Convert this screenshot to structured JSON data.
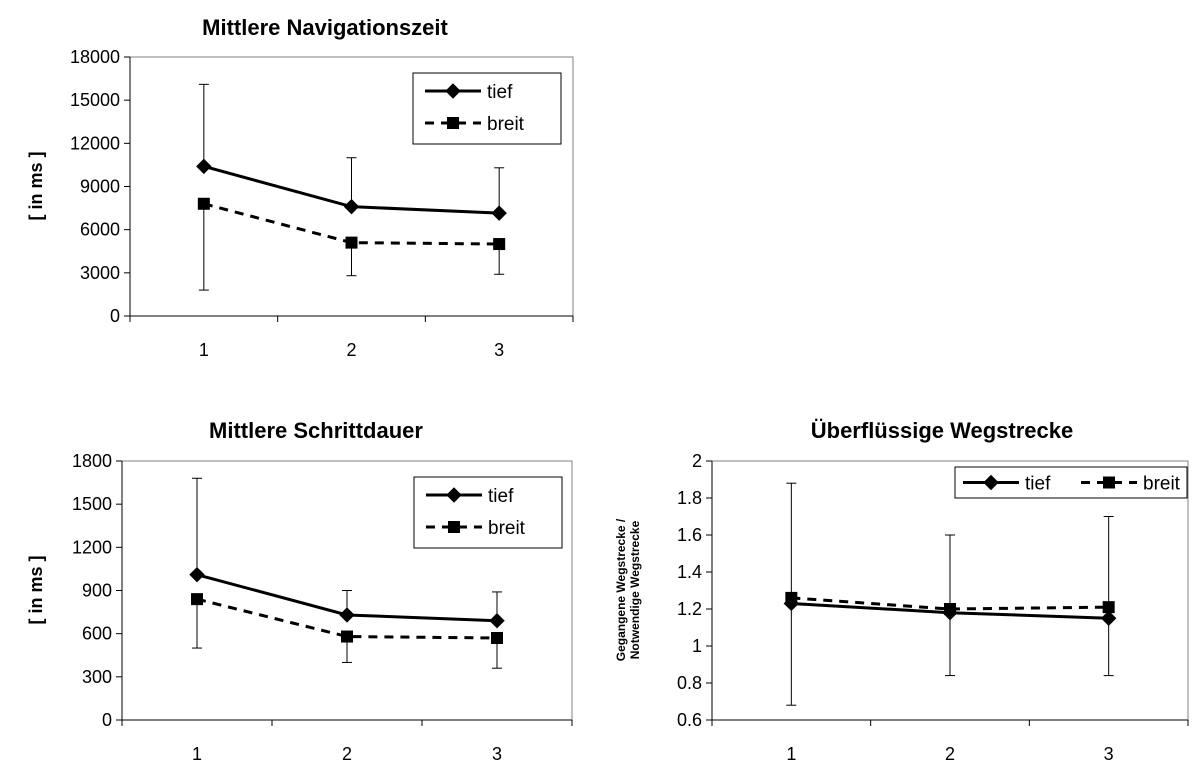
{
  "colors": {
    "series": "#000000",
    "background": "#ffffff"
  },
  "chart_data": [
    {
      "type": "line",
      "title": "Mittlere Navigationszeit",
      "ylabel_lines": [
        "[ in ms ]"
      ],
      "xlabel": "",
      "categories": [
        "1",
        "2",
        "3"
      ],
      "ylim": [
        0,
        18000
      ],
      "yticks": [
        0,
        3000,
        6000,
        9000,
        12000,
        15000,
        18000
      ],
      "ytick_labels": [
        "0",
        "3000",
        "6000",
        "9000",
        "12000",
        "15000",
        "18000"
      ],
      "grid": false,
      "legend_position": "top-right",
      "legend_layout": "vertical",
      "series": [
        {
          "name": "tief",
          "style": "solid",
          "marker": "diamond",
          "values": [
            10400,
            7600,
            7150
          ],
          "error_upper": [
            16100,
            11000,
            10300
          ],
          "error_lower": [
            null,
            null,
            null
          ]
        },
        {
          "name": "breit",
          "style": "dashed",
          "marker": "square",
          "values": [
            7800,
            5100,
            5000
          ],
          "error_upper": [
            null,
            null,
            null
          ],
          "error_lower": [
            1800,
            2800,
            2900
          ]
        }
      ]
    },
    {
      "type": "line",
      "title": "Mittlere Schrittdauer",
      "ylabel_lines": [
        "[ in ms ]"
      ],
      "xlabel": "",
      "categories": [
        "1",
        "2",
        "3"
      ],
      "ylim": [
        0,
        1800
      ],
      "yticks": [
        0,
        300,
        600,
        900,
        1200,
        1500,
        1800
      ],
      "ytick_labels": [
        "0",
        "300",
        "600",
        "900",
        "1200",
        "1500",
        "1800"
      ],
      "grid": false,
      "legend_position": "top-right",
      "legend_layout": "vertical",
      "series": [
        {
          "name": "tief",
          "style": "solid",
          "marker": "diamond",
          "values": [
            1010,
            730,
            690
          ],
          "error_upper": [
            1680,
            900,
            890
          ],
          "error_lower": [
            null,
            null,
            null
          ]
        },
        {
          "name": "breit",
          "style": "dashed",
          "marker": "square",
          "values": [
            840,
            580,
            570
          ],
          "error_upper": [
            null,
            null,
            null
          ],
          "error_lower": [
            500,
            400,
            360
          ]
        }
      ]
    },
    {
      "type": "line",
      "title": "Überflüssige Wegstrecke",
      "ylabel_lines": [
        "Gegangene Wegstrecke /",
        "Notwendige Wegstrecke"
      ],
      "xlabel": "",
      "categories": [
        "1",
        "2",
        "3"
      ],
      "ylim": [
        0.6,
        2
      ],
      "yticks": [
        0.6,
        0.8,
        1.0,
        1.2,
        1.4,
        1.6,
        1.8,
        2.0
      ],
      "ytick_labels": [
        "0.6",
        "0.8",
        "1",
        "1.2",
        "1.4",
        "1.6",
        "1.8",
        "2"
      ],
      "grid": false,
      "legend_position": "top-right",
      "legend_layout": "horizontal",
      "series": [
        {
          "name": "tief",
          "style": "solid",
          "marker": "diamond",
          "values": [
            1.23,
            1.18,
            1.15
          ],
          "error_upper": [
            1.88,
            1.6,
            1.7
          ],
          "error_lower": [
            0.68,
            0.84,
            0.84
          ]
        },
        {
          "name": "breit",
          "style": "dashed",
          "marker": "square",
          "values": [
            1.26,
            1.2,
            1.21
          ],
          "error_upper": [
            null,
            null,
            null
          ],
          "error_lower": [
            null,
            null,
            null
          ]
        }
      ]
    }
  ]
}
